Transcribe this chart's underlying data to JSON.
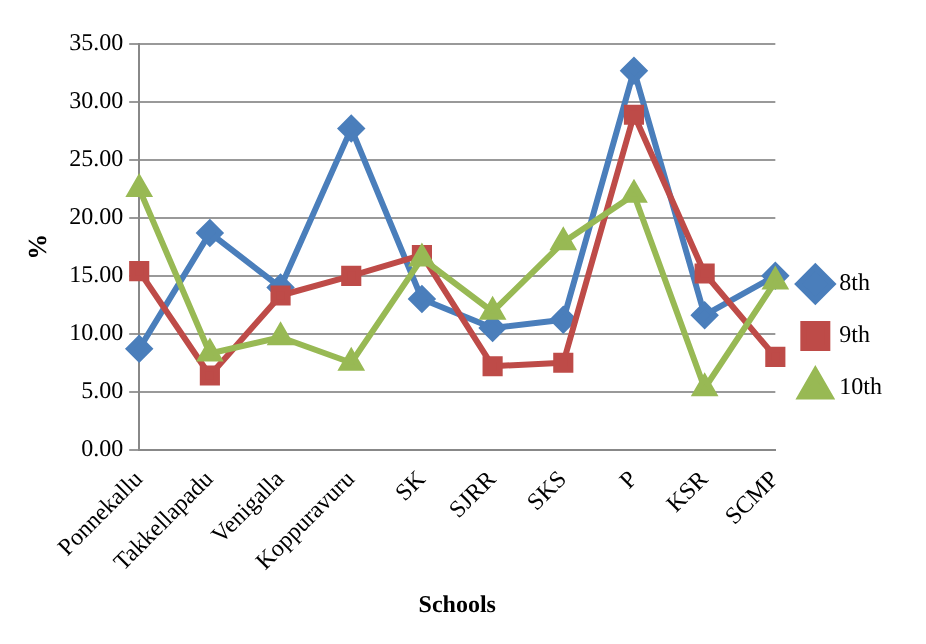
{
  "chart_data": {
    "type": "line",
    "xlabel": "Schools",
    "ylabel": "%",
    "categories": [
      "Ponnekallu",
      "Takkellapadu",
      "Venigalla",
      "Koppuravuru",
      "SK",
      "SJRR",
      "SKS",
      "P",
      "KSR",
      "SCMP"
    ],
    "series": [
      {
        "name": "8th",
        "color": "#4a7ebb",
        "marker": "diamond",
        "values": [
          8.7,
          18.7,
          14.0,
          27.7,
          13.0,
          10.5,
          11.2,
          32.7,
          11.6,
          15.0
        ]
      },
      {
        "name": "9th",
        "color": "#be4b48",
        "marker": "square",
        "values": [
          15.4,
          6.4,
          13.3,
          15.0,
          16.8,
          7.2,
          7.5,
          28.9,
          15.2,
          8.0
        ]
      },
      {
        "name": "10th",
        "color": "#98b954",
        "marker": "triangle",
        "values": [
          22.5,
          8.3,
          9.7,
          7.5,
          16.5,
          11.9,
          17.9,
          22.0,
          5.3,
          14.5
        ]
      }
    ],
    "ylim": [
      0,
      35
    ],
    "yticks": [
      {
        "value": 0,
        "label": "0.00"
      },
      {
        "value": 5,
        "label": "5.00"
      },
      {
        "value": 10,
        "label": "10.00"
      },
      {
        "value": 15,
        "label": "15.00"
      },
      {
        "value": 20,
        "label": "20.00"
      },
      {
        "value": 25,
        "label": "25.00"
      },
      {
        "value": 30,
        "label": "30.00"
      },
      {
        "value": 35,
        "label": "35.00"
      }
    ],
    "grid": "y",
    "legend": "right"
  }
}
